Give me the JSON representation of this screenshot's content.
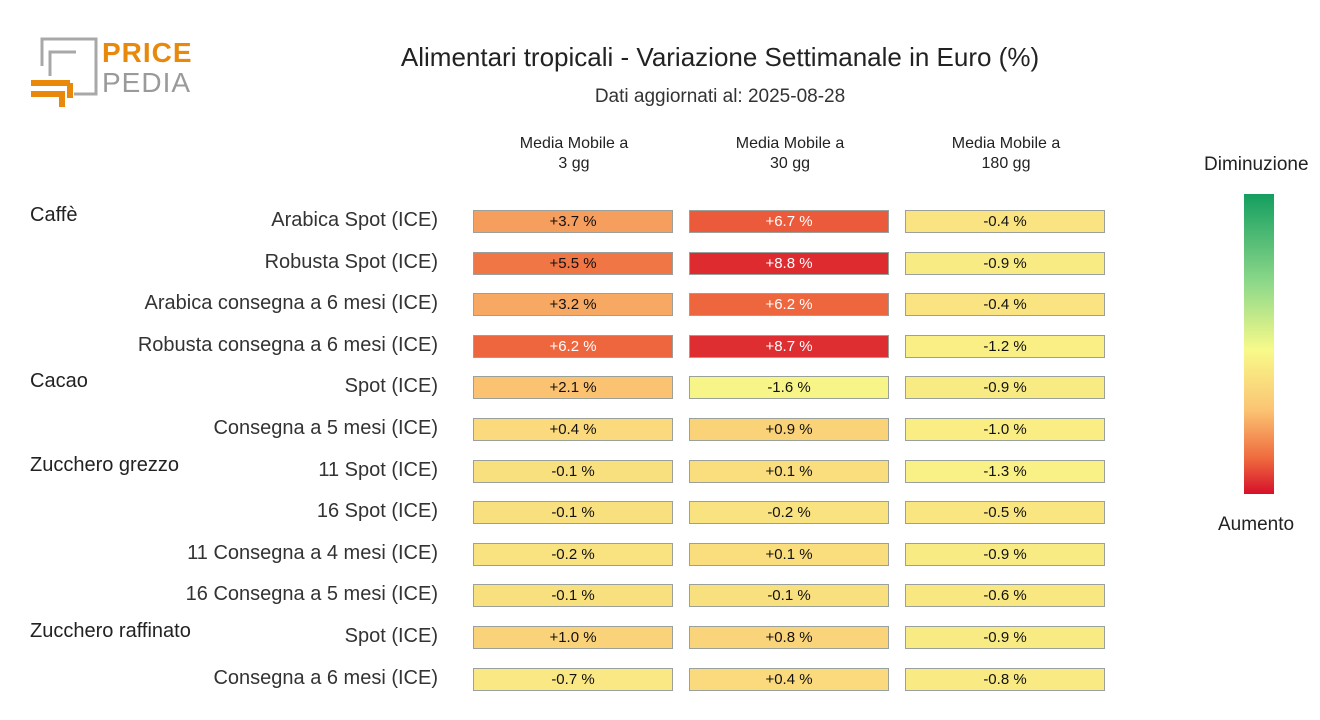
{
  "logo": {
    "line1": "PRICE",
    "line2": "PEDIA"
  },
  "chart_data": {
    "type": "table",
    "title": "Alimentari tropicali - Variazione Settimanale in Euro (%)",
    "subtitle": "Dati aggiornati al: 2025-08-28",
    "columns": [
      "Media Mobile a\n3 gg",
      "Media Mobile a\n30 gg",
      "Media Mobile a\n180 gg"
    ],
    "groups": [
      {
        "name": "Caffè",
        "rows": [
          {
            "label": "Arabica Spot (ICE)",
            "values": [
              3.7,
              6.7,
              -0.4
            ],
            "texts": [
              "+3.7 %",
              "+6.7 %",
              "-0.4 %"
            ]
          },
          {
            "label": "Robusta Spot (ICE)",
            "values": [
              5.5,
              8.8,
              -0.9
            ],
            "texts": [
              "+5.5 %",
              "+8.8 %",
              "-0.9 %"
            ]
          },
          {
            "label": "Arabica consegna a 6 mesi (ICE)",
            "values": [
              3.2,
              6.2,
              -0.4
            ],
            "texts": [
              "+3.2 %",
              "+6.2 %",
              "-0.4 %"
            ]
          },
          {
            "label": "Robusta consegna a 6 mesi (ICE)",
            "values": [
              6.2,
              8.7,
              -1.2
            ],
            "texts": [
              "+6.2 %",
              "+8.7 %",
              "-1.2 %"
            ]
          }
        ]
      },
      {
        "name": "Cacao",
        "rows": [
          {
            "label": "Spot (ICE)",
            "values": [
              2.1,
              -1.6,
              -0.9
            ],
            "texts": [
              "+2.1 %",
              "-1.6 %",
              "-0.9 %"
            ]
          },
          {
            "label": "Consegna a 5 mesi (ICE)",
            "values": [
              0.4,
              0.9,
              -1.0
            ],
            "texts": [
              "+0.4 %",
              "+0.9 %",
              "-1.0 %"
            ]
          }
        ]
      },
      {
        "name": "Zucchero grezzo",
        "rows": [
          {
            "label": "11 Spot (ICE)",
            "values": [
              -0.1,
              0.1,
              -1.3
            ],
            "texts": [
              "-0.1 %",
              "+0.1 %",
              "-1.3 %"
            ]
          },
          {
            "label": "16 Spot (ICE)",
            "values": [
              -0.1,
              -0.2,
              -0.5
            ],
            "texts": [
              "-0.1 %",
              "-0.2 %",
              "-0.5 %"
            ]
          },
          {
            "label": "11 Consegna a 4 mesi (ICE)",
            "values": [
              -0.2,
              0.1,
              -0.9
            ],
            "texts": [
              "-0.2 %",
              "+0.1 %",
              "-0.9 %"
            ]
          },
          {
            "label": "16 Consegna a 5 mesi (ICE)",
            "values": [
              -0.1,
              -0.1,
              -0.6
            ],
            "texts": [
              "-0.1 %",
              "-0.1 %",
              "-0.6 %"
            ]
          }
        ]
      },
      {
        "name": "Zucchero raffinato",
        "rows": [
          {
            "label": "Spot (ICE)",
            "values": [
              1.0,
              0.8,
              -0.9
            ],
            "texts": [
              "+1.0 %",
              "+0.8 %",
              "-0.9 %"
            ]
          },
          {
            "label": "Consegna a 6 mesi (ICE)",
            "values": [
              -0.7,
              0.4,
              -0.8
            ],
            "texts": [
              "-0.7 %",
              "+0.4 %",
              "-0.8 %"
            ]
          }
        ]
      }
    ],
    "colorscale": {
      "top_label": "Diminuzione",
      "bottom_label": "Aumento",
      "colors": [
        "#149e60",
        "#8fd98a",
        "#f8fa8a",
        "#fbc473",
        "#ef6b3f",
        "#d6102a"
      ]
    }
  }
}
